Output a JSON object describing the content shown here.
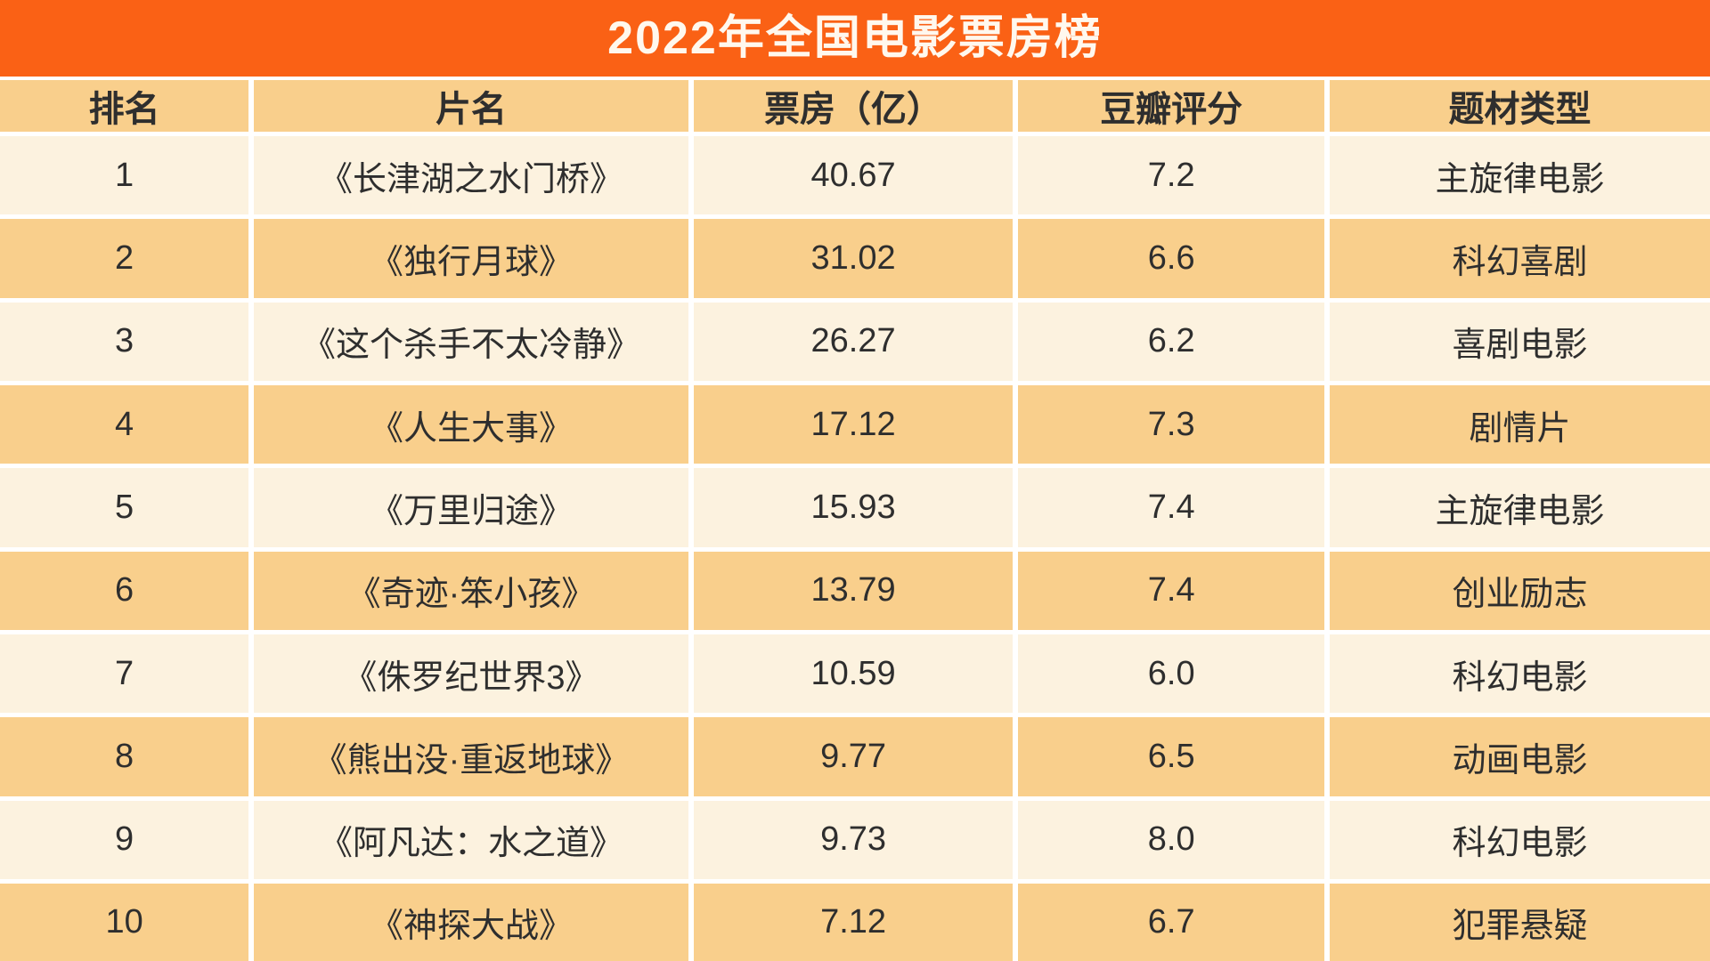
{
  "chart_data": {
    "type": "table",
    "title": "2022年全国电影票房榜",
    "columns": [
      "排名",
      "片名",
      "票房（亿）",
      "豆瓣评分",
      "题材类型"
    ],
    "rows": [
      [
        "1",
        "《长津湖之水门桥》",
        "40.67",
        "7.2",
        "主旋律电影"
      ],
      [
        "2",
        "《独行月球》",
        "31.02",
        "6.6",
        "科幻喜剧"
      ],
      [
        "3",
        "《这个杀手不太冷静》",
        "26.27",
        "6.2",
        "喜剧电影"
      ],
      [
        "4",
        "《人生大事》",
        "17.12",
        "7.3",
        "剧情片"
      ],
      [
        "5",
        "《万里归途》",
        "15.93",
        "7.4",
        "主旋律电影"
      ],
      [
        "6",
        "《奇迹·笨小孩》",
        "13.79",
        "7.4",
        "创业励志"
      ],
      [
        "7",
        "《侏罗纪世界3》",
        "10.59",
        "6.0",
        "科幻电影"
      ],
      [
        "8",
        "《熊出没·重返地球》",
        "9.77",
        "6.5",
        "动画电影"
      ],
      [
        "9",
        "《阿凡达：水之道》",
        "9.73",
        "8.0",
        "科幻电影"
      ],
      [
        "10",
        "《神探大战》",
        "7.12",
        "6.7",
        "犯罪悬疑"
      ]
    ]
  },
  "colors": {
    "title_bar_bg": "#FA6115",
    "header_row_bg": "#F9CF8C",
    "row_even_bg": "#F9CF8C",
    "row_odd_bg": "#FCF2DF",
    "separator": "#FFFFFF",
    "text": "#2E2E2E",
    "title_text": "#FFF8EE"
  }
}
